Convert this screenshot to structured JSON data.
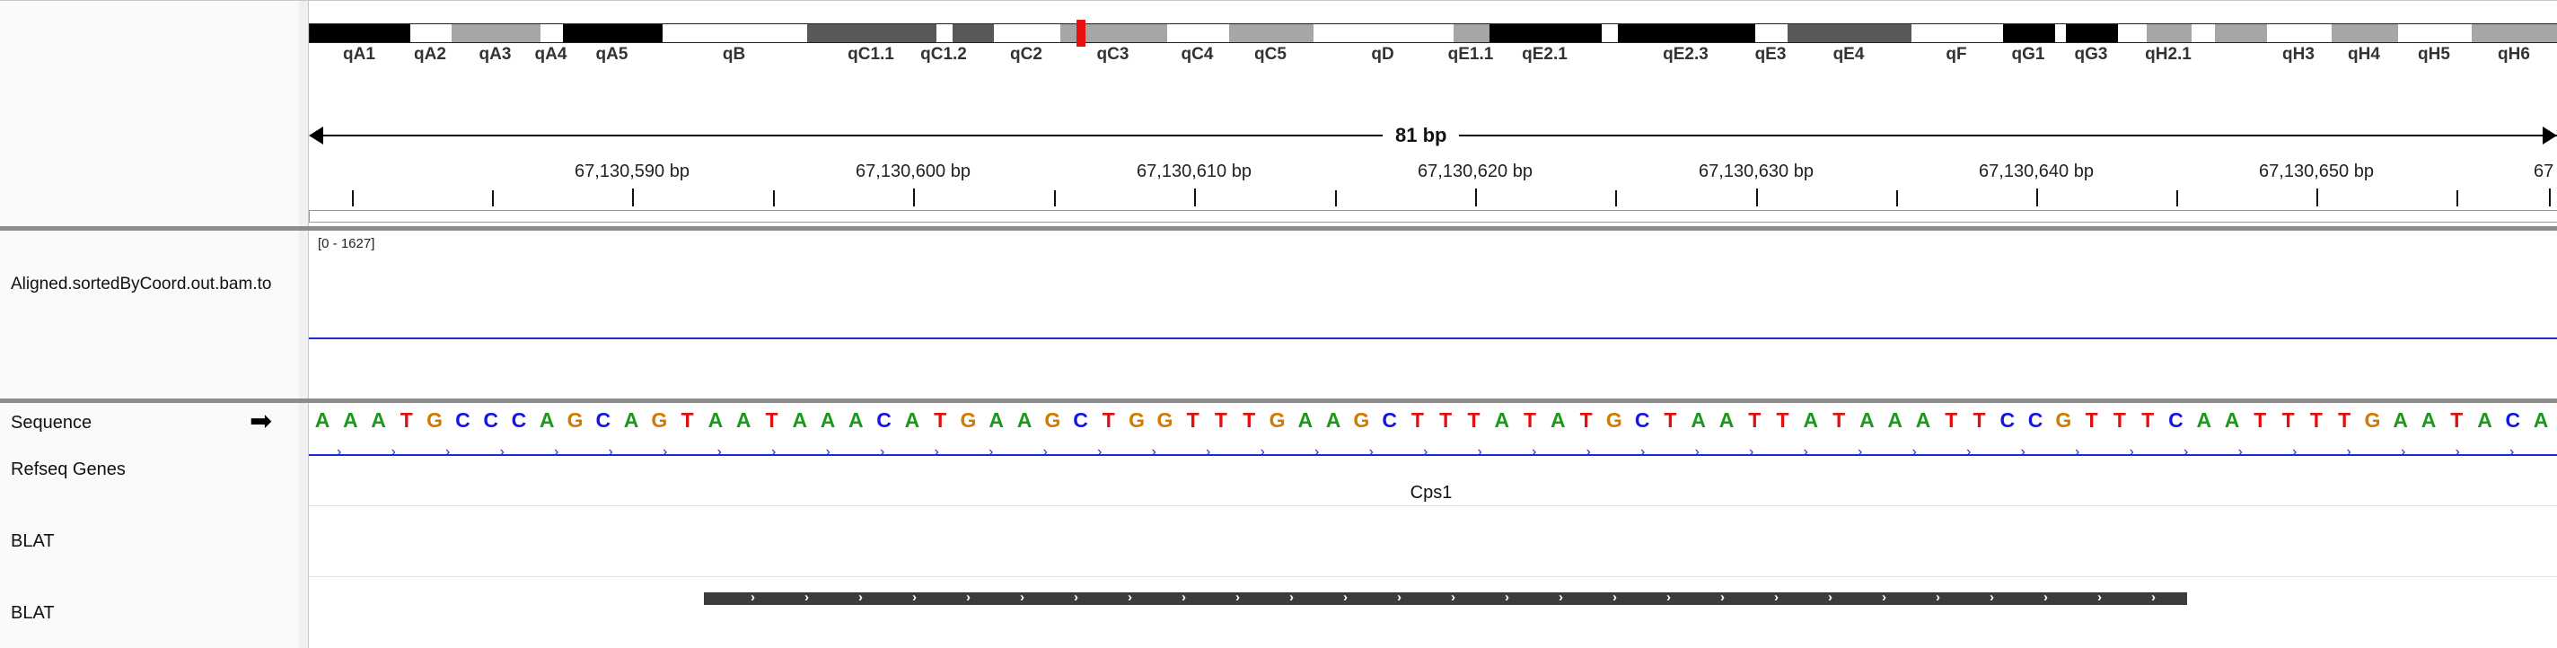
{
  "ideogram": {
    "bands": [
      {
        "label": "qA1",
        "fill": "#000000"
      },
      {
        "label": "qA2",
        "fill": "#ffffff"
      },
      {
        "label": "qA3",
        "fill": "#a6a6a6"
      },
      {
        "label": "qA4",
        "fill": "#ffffff"
      },
      {
        "label": "qA5",
        "fill": "#000000"
      },
      {
        "label": "qB",
        "fill": "#ffffff"
      },
      {
        "label": "qC1.1",
        "fill": "#595959"
      },
      {
        "label": "qC1.2",
        "fill": "#ffffff"
      },
      {
        "label": "",
        "fill": "#595959"
      },
      {
        "label": "qC2",
        "fill": "#ffffff"
      },
      {
        "label": "qC3",
        "fill": "#a6a6a6"
      },
      {
        "label": "qC4",
        "fill": "#ffffff"
      },
      {
        "label": "qC5",
        "fill": "#a6a6a6"
      },
      {
        "label": "qD",
        "fill": "#ffffff"
      },
      {
        "label": "qE1.1",
        "fill": "#a6a6a6"
      },
      {
        "label": "qE2.1",
        "fill": "#000000"
      },
      {
        "label": "",
        "fill": "#ffffff"
      },
      {
        "label": "qE2.3",
        "fill": "#000000"
      },
      {
        "label": "qE3",
        "fill": "#ffffff"
      },
      {
        "label": "qE4",
        "fill": "#595959"
      },
      {
        "label": "qF",
        "fill": "#ffffff"
      },
      {
        "label": "qG1",
        "fill": "#000000"
      },
      {
        "label": "",
        "fill": "#ffffff"
      },
      {
        "label": "qG3",
        "fill": "#000000"
      },
      {
        "label": "",
        "fill": "#ffffff"
      },
      {
        "label": "qH2.1",
        "fill": "#a6a6a6"
      },
      {
        "label": "",
        "fill": "#ffffff"
      },
      {
        "label": "",
        "fill": "#a6a6a6"
      },
      {
        "label": "qH3",
        "fill": "#ffffff"
      },
      {
        "label": "qH4",
        "fill": "#a6a6a6"
      },
      {
        "label": "qH5",
        "fill": "#ffffff"
      },
      {
        "label": "qH6",
        "fill": "#a6a6a6"
      }
    ],
    "marker_color": "#e81010"
  },
  "ruler": {
    "span_label": "81 bp",
    "tick_labels": [
      "67,130,590 bp",
      "67,130,600 bp",
      "67,130,610 bp",
      "67,130,620 bp",
      "67,130,630 bp",
      "67,130,640 bp",
      "67,130,650 bp",
      "67"
    ]
  },
  "tracks": {
    "alignment": {
      "name": "Aligned.sortedByCoord.out.bam.to",
      "range": "[0 - 1627]",
      "line_color": "#1c2bd0"
    },
    "sequence": {
      "name": "Sequence",
      "arrow": "➡",
      "bases": "AAATGCCCAGCAGTAATAAACATGAAGCTGGTTTGAAGCTTTATATGCTAATTATAAATTCCGTTTCAATTTTGAATACA"
    },
    "refseq": {
      "name": "Refseq Genes",
      "gene": "Cps1",
      "color": "#1c2bd0"
    },
    "blat1": {
      "name": "BLAT"
    },
    "blat2": {
      "name": "BLAT",
      "feature_color": "#3c3c3c"
    }
  },
  "colors": {
    "A": "#1a9a1a",
    "C": "#1414e6",
    "G": "#d17a00",
    "T": "#e01010"
  }
}
